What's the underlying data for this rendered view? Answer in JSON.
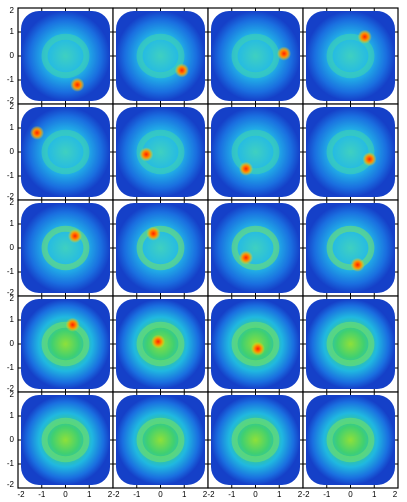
{
  "chart_data": {
    "type": "image-grid",
    "xlim": [
      -2,
      2
    ],
    "ylim": [
      -2,
      2
    ],
    "xticks": [
      -2,
      -1,
      0,
      1,
      2
    ],
    "yticks": [
      -2,
      -1,
      0,
      1,
      2
    ],
    "spots": {
      "x": [
        0.5,
        0.9,
        1.2,
        0.6,
        -1.2,
        -0.6,
        -0.4,
        0.8,
        0.4,
        -0.3,
        -0.4,
        0.3,
        0.3,
        -0.1,
        0.1,
        null,
        null,
        null,
        null,
        null
      ],
      "y": [
        -1.2,
        -0.6,
        0.1,
        0.8,
        0.8,
        -0.1,
        -0.7,
        -0.3,
        0.5,
        0.6,
        -0.4,
        -0.7,
        0.8,
        0.1,
        -0.2,
        null,
        null,
        null,
        null,
        null
      ]
    }
  }
}
